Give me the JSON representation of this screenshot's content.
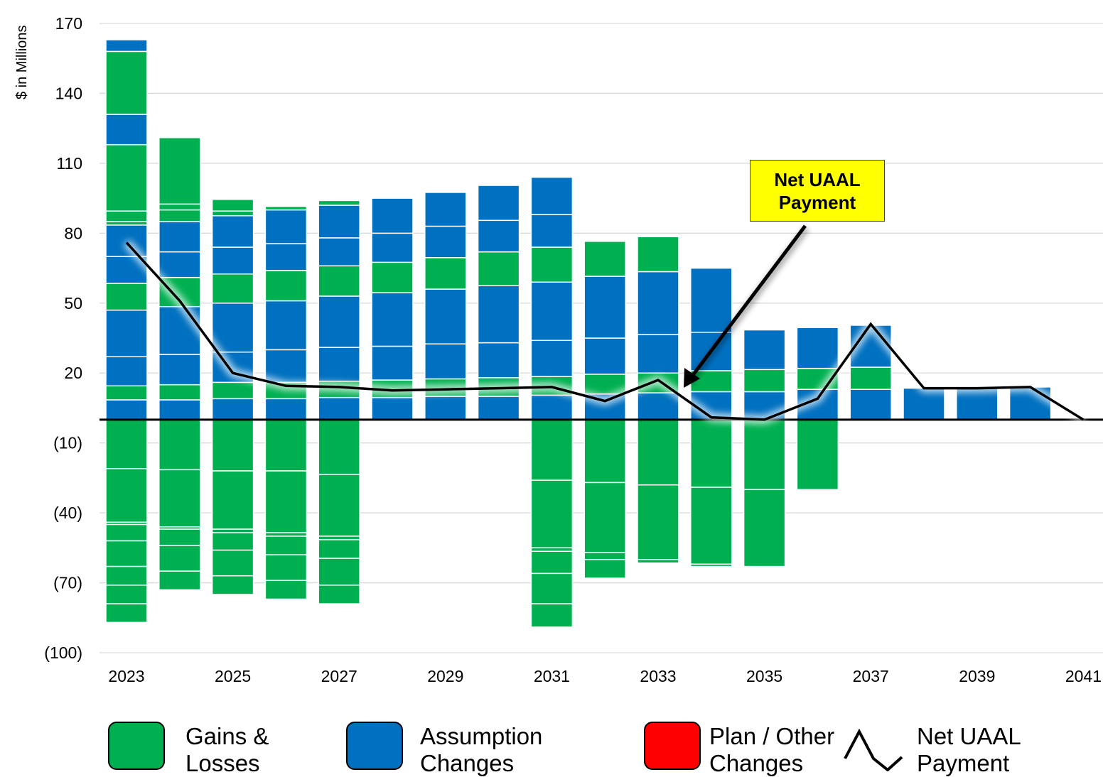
{
  "chart_data": {
    "type": "bar",
    "stacked": true,
    "ylabel": "$ in Millions",
    "ylim": [
      -100,
      170
    ],
    "yticks": [
      170,
      140,
      110,
      80,
      50,
      20,
      -10,
      -40,
      -70,
      -100
    ],
    "ytick_labels": [
      "170",
      "140",
      "110",
      "80",
      "50",
      "20",
      "(10)",
      "(40)",
      "(70)",
      "(100)"
    ],
    "grid": true,
    "categories": [
      "2023",
      "2024",
      "2025",
      "2026",
      "2027",
      "2028",
      "2029",
      "2030",
      "2031",
      "2032",
      "2033",
      "2034",
      "2035",
      "2036",
      "2037",
      "2038",
      "2039",
      "2040",
      "2041"
    ],
    "xtick_labels": [
      "2023",
      "2025",
      "2027",
      "2029",
      "2031",
      "2033",
      "2035",
      "2037",
      "2039",
      "2041"
    ],
    "colors": {
      "gains_losses": "#00b050",
      "assumption": "#0070c0",
      "plan_other": "#ff0000",
      "net_line": "#000000",
      "callout": "#ffff00"
    },
    "stacks": [
      [
        [
          "a",
          0,
          8.5
        ],
        [
          "g",
          8.5,
          14.5
        ],
        [
          "a",
          14.5,
          27
        ],
        [
          "a",
          27,
          47
        ],
        [
          "g",
          47,
          58.5
        ],
        [
          "a",
          58.5,
          70
        ],
        [
          "a",
          70,
          83.5
        ],
        [
          "g",
          83.5,
          85
        ],
        [
          "g",
          85,
          89.5
        ],
        [
          "g",
          89.5,
          118
        ],
        [
          "a",
          118,
          131
        ],
        [
          "g",
          131,
          158
        ],
        [
          "a",
          158,
          163
        ],
        [
          "g",
          0,
          -21
        ],
        [
          "g",
          -21,
          -44
        ],
        [
          "g",
          -44,
          -45
        ],
        [
          "g",
          -45,
          -52
        ],
        [
          "g",
          -52,
          -63
        ],
        [
          "g",
          -63,
          -71
        ],
        [
          "g",
          -71,
          -79
        ],
        [
          "g",
          -79,
          -87
        ]
      ],
      [
        [
          "a",
          0,
          8.5
        ],
        [
          "g",
          8.5,
          15
        ],
        [
          "a",
          15,
          28
        ],
        [
          "a",
          28,
          48.5
        ],
        [
          "g",
          48.5,
          61
        ],
        [
          "a",
          61,
          72
        ],
        [
          "a",
          72,
          85
        ],
        [
          "g",
          85,
          90
        ],
        [
          "g",
          90,
          92.5
        ],
        [
          "g",
          92.5,
          121
        ],
        [
          "g",
          0,
          -21.5
        ],
        [
          "g",
          -21.5,
          -46
        ],
        [
          "g",
          -46,
          -47
        ],
        [
          "g",
          -47,
          -54
        ],
        [
          "g",
          -54,
          -65
        ],
        [
          "g",
          -65,
          -73
        ]
      ],
      [
        [
          "a",
          0,
          9
        ],
        [
          "g",
          9,
          16
        ],
        [
          "a",
          16,
          29
        ],
        [
          "a",
          29,
          50
        ],
        [
          "g",
          50,
          62.5
        ],
        [
          "a",
          62.5,
          74
        ],
        [
          "a",
          74,
          87.5
        ],
        [
          "g",
          87.5,
          89.5
        ],
        [
          "g",
          89.5,
          94.5
        ],
        [
          "g",
          0,
          -22
        ],
        [
          "g",
          -22,
          -47
        ],
        [
          "g",
          -47,
          -48.5
        ],
        [
          "g",
          -48.5,
          -56
        ],
        [
          "g",
          -56,
          -67
        ],
        [
          "g",
          -67,
          -75
        ]
      ],
      [
        [
          "a",
          0,
          9
        ],
        [
          "g",
          9,
          16
        ],
        [
          "a",
          16,
          30
        ],
        [
          "a",
          30,
          51
        ],
        [
          "g",
          51,
          64
        ],
        [
          "a",
          64,
          75.5
        ],
        [
          "a",
          75.5,
          90
        ],
        [
          "g",
          90,
          91.5
        ],
        [
          "g",
          0,
          -22
        ],
        [
          "g",
          -22,
          -48.5
        ],
        [
          "g",
          -48.5,
          -50
        ],
        [
          "g",
          -50,
          -58
        ],
        [
          "g",
          -58,
          -69
        ],
        [
          "g",
          -69,
          -77
        ]
      ],
      [
        [
          "a",
          0,
          9.5
        ],
        [
          "g",
          9.5,
          16.5
        ],
        [
          "a",
          16.5,
          31
        ],
        [
          "a",
          31,
          53
        ],
        [
          "g",
          53,
          66
        ],
        [
          "a",
          66,
          78
        ],
        [
          "a",
          78,
          92
        ],
        [
          "g",
          92,
          94
        ],
        [
          "g",
          0,
          -23.5
        ],
        [
          "g",
          -23.5,
          -50
        ],
        [
          "g",
          -50,
          -51.5
        ],
        [
          "g",
          -51.5,
          -59.5
        ],
        [
          "g",
          -59.5,
          -71
        ],
        [
          "g",
          -71,
          -79
        ]
      ],
      [
        [
          "a",
          0,
          9.5
        ],
        [
          "g",
          9.5,
          17
        ],
        [
          "a",
          17,
          31.5
        ],
        [
          "a",
          31.5,
          54.5
        ],
        [
          "g",
          54.5,
          67.5
        ],
        [
          "a",
          67.5,
          80
        ],
        [
          "a",
          80,
          95
        ]
      ],
      [
        [
          "a",
          0,
          10
        ],
        [
          "g",
          10,
          17.5
        ],
        [
          "a",
          17.5,
          32.5
        ],
        [
          "a",
          32.5,
          56
        ],
        [
          "g",
          56,
          69.5
        ],
        [
          "a",
          69.5,
          83
        ],
        [
          "a",
          83,
          97.5
        ]
      ],
      [
        [
          "a",
          0,
          10
        ],
        [
          "g",
          10,
          18
        ],
        [
          "a",
          18,
          33
        ],
        [
          "a",
          33,
          57.5
        ],
        [
          "g",
          57.5,
          72
        ],
        [
          "a",
          72,
          85.5
        ],
        [
          "a",
          85.5,
          100.5
        ]
      ],
      [
        [
          "a",
          0,
          10.5
        ],
        [
          "g",
          10.5,
          18.5
        ],
        [
          "a",
          18.5,
          34
        ],
        [
          "a",
          34,
          59
        ],
        [
          "g",
          59,
          74
        ],
        [
          "a",
          74,
          88
        ],
        [
          "a",
          88,
          104
        ],
        [
          "g",
          0,
          -26
        ],
        [
          "g",
          -26,
          -55
        ],
        [
          "g",
          -55,
          -56.5
        ],
        [
          "g",
          -56.5,
          -66
        ],
        [
          "g",
          -66,
          -79
        ],
        [
          "g",
          -79,
          -89
        ]
      ],
      [
        [
          "a",
          0,
          11
        ],
        [
          "g",
          11,
          19.5
        ],
        [
          "a",
          19.5,
          35
        ],
        [
          "a",
          35,
          61.5
        ],
        [
          "g",
          61.5,
          76.5
        ],
        [
          "g",
          0,
          -27
        ],
        [
          "g",
          -27,
          -57
        ],
        [
          "g",
          -57,
          -60
        ],
        [
          "g",
          -60,
          -68
        ]
      ],
      [
        [
          "a",
          0,
          11.5
        ],
        [
          "g",
          11.5,
          20
        ],
        [
          "a",
          20,
          36.5
        ],
        [
          "a",
          36.5,
          63.5
        ],
        [
          "g",
          63.5,
          78.5
        ],
        [
          "g",
          0,
          -28
        ],
        [
          "g",
          -28,
          -60
        ],
        [
          "g",
          -60,
          -61.5
        ]
      ],
      [
        [
          "a",
          0,
          12
        ],
        [
          "g",
          12,
          21
        ],
        [
          "a",
          21,
          37.5
        ],
        [
          "a",
          37.5,
          65
        ],
        [
          "g",
          0,
          -29
        ],
        [
          "g",
          -29,
          -62
        ],
        [
          "g",
          -62,
          -63
        ]
      ],
      [
        [
          "a",
          0,
          12
        ],
        [
          "g",
          12,
          21.5
        ],
        [
          "a",
          21.5,
          38.5
        ],
        [
          "g",
          0,
          -30
        ],
        [
          "g",
          -30,
          -63
        ]
      ],
      [
        [
          "a",
          0,
          13
        ],
        [
          "g",
          13,
          22
        ],
        [
          "a",
          22,
          39.5
        ],
        [
          "g",
          0,
          -30
        ]
      ],
      [
        [
          "a",
          0,
          13
        ],
        [
          "g",
          13,
          22.5
        ],
        [
          "a",
          22.5,
          40.5
        ]
      ],
      [
        [
          "a",
          0,
          13.5
        ]
      ],
      [
        [
          "a",
          0,
          13.5
        ]
      ],
      [
        [
          "a",
          0,
          14
        ]
      ],
      []
    ],
    "series": [
      {
        "name": "Net UAAL Payment",
        "type": "line",
        "values": [
          76,
          51,
          20,
          14.5,
          14,
          12.5,
          13,
          13.5,
          14,
          8,
          17,
          1,
          0,
          9,
          41,
          13.5,
          13.5,
          14,
          0
        ]
      }
    ],
    "legend": [
      "Gains & Losses",
      "Assumption Changes",
      "Plan / Other Changes",
      "Net UAAL Payment"
    ],
    "legend_position": "bottom",
    "annotation": "Net UAAL Payment"
  },
  "legend": {
    "gains_line1": "Gains &",
    "gains_line2": "Losses",
    "assump_line1": "Assumption",
    "assump_line2": "Changes",
    "plan_line1": "Plan / Other",
    "plan_line2": "Changes",
    "net_line1": "Net UAAL",
    "net_line2": "Payment"
  },
  "callout": {
    "line1": "Net UAAL",
    "line2": "Payment"
  }
}
